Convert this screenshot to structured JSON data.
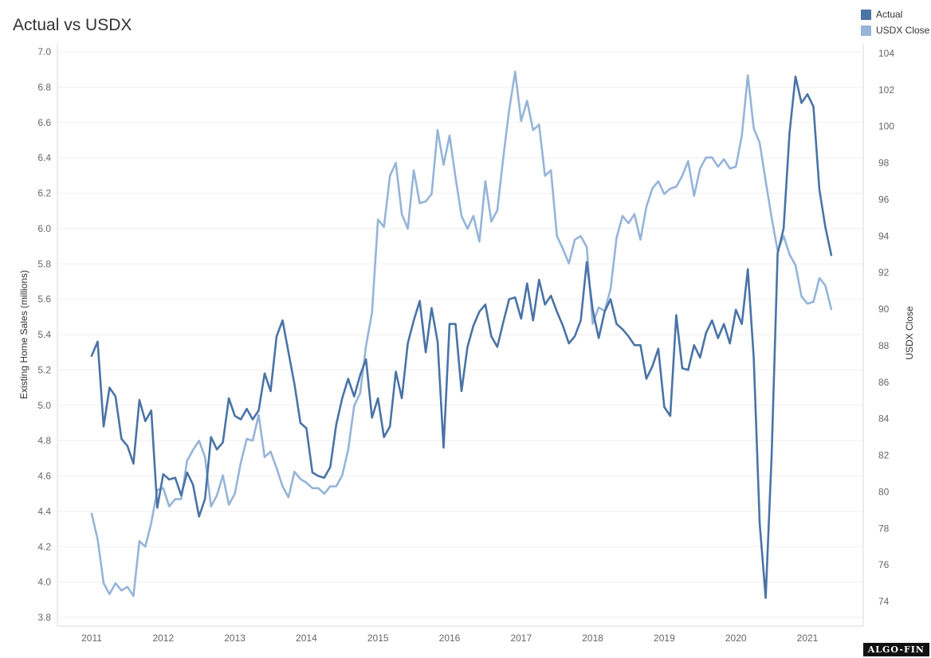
{
  "chart_data": {
    "type": "line",
    "title": "Actual vs USDX",
    "ylabel": "Existing Home Sales (millions)",
    "y2label": "USDX Close",
    "ylim": [
      3.8,
      7.0
    ],
    "y2lim": [
      73,
      104
    ],
    "xlim": [
      2010.5,
      2022.0
    ],
    "x_ticks": [
      "2011",
      "2012",
      "2013",
      "2014",
      "2015",
      "2016",
      "2017",
      "2018",
      "2019",
      "2020",
      "2021"
    ],
    "y_ticks": [
      "3.8",
      "4.0",
      "4.2",
      "4.4",
      "4.6",
      "4.8",
      "5.0",
      "5.2",
      "5.4",
      "5.6",
      "5.8",
      "6.0",
      "6.2",
      "6.4",
      "6.6",
      "6.8",
      "7.0"
    ],
    "y2_ticks": [
      "74",
      "76",
      "78",
      "80",
      "82",
      "84",
      "86",
      "88",
      "90",
      "92",
      "94",
      "96",
      "98",
      "100",
      "102",
      "104"
    ],
    "grid": true,
    "legend_position": "top-right",
    "x_start_year": 2011,
    "series": [
      {
        "name": "Actual",
        "color": "#4a73a6",
        "axis": "left",
        "values": [
          5.28,
          5.36,
          4.88,
          5.1,
          5.05,
          4.81,
          4.77,
          4.67,
          5.03,
          4.91,
          4.97,
          4.42,
          4.61,
          4.58,
          4.59,
          4.49,
          4.62,
          4.55,
          4.37,
          4.47,
          4.82,
          4.75,
          4.79,
          5.04,
          4.94,
          4.92,
          4.98,
          4.92,
          4.97,
          5.18,
          5.08,
          5.39,
          5.48,
          5.3,
          5.12,
          4.9,
          4.87,
          4.62,
          4.6,
          4.59,
          4.65,
          4.89,
          5.04,
          5.15,
          5.05,
          5.17,
          5.26,
          4.93,
          5.04,
          4.82,
          4.88,
          5.19,
          5.04,
          5.35,
          5.48,
          5.59,
          5.3,
          5.55,
          5.36,
          4.76,
          5.46,
          5.46,
          5.08,
          5.33,
          5.45,
          5.53,
          5.57,
          5.39,
          5.33,
          5.47,
          5.6,
          5.61,
          5.49,
          5.69,
          5.48,
          5.71,
          5.57,
          5.62,
          5.53,
          5.45,
          5.35,
          5.39,
          5.48,
          5.81,
          5.54,
          5.38,
          5.53,
          5.6,
          5.46,
          5.43,
          5.39,
          5.34,
          5.34,
          5.15,
          5.22,
          5.32,
          4.99,
          4.94,
          5.51,
          5.21,
          5.2,
          5.34,
          5.27,
          5.41,
          5.48,
          5.38,
          5.46,
          5.35,
          5.54,
          5.46,
          5.77,
          5.27,
          4.33,
          3.91,
          4.72,
          5.86,
          6.0,
          6.54,
          6.86,
          6.71,
          6.76,
          6.69,
          6.22,
          6.01,
          5.85
        ]
      },
      {
        "name": "USDX Close",
        "color": "#95b4d8",
        "axis": "right",
        "values": [
          78.8,
          77.4,
          75.0,
          74.4,
          75.0,
          74.6,
          74.8,
          74.3,
          77.3,
          77.0,
          78.3,
          80.1,
          80.2,
          79.2,
          79.6,
          79.6,
          81.7,
          82.3,
          82.8,
          81.9,
          79.2,
          79.8,
          80.9,
          79.3,
          79.9,
          81.6,
          82.9,
          82.8,
          84.2,
          81.9,
          82.2,
          81.3,
          80.3,
          79.7,
          81.1,
          80.7,
          80.5,
          80.2,
          80.2,
          79.9,
          80.3,
          80.3,
          80.9,
          82.3,
          84.7,
          85.4,
          88.0,
          89.8,
          94.9,
          94.5,
          97.3,
          98.0,
          95.2,
          94.4,
          97.6,
          95.8,
          95.9,
          96.3,
          99.8,
          97.9,
          99.5,
          97.2,
          95.1,
          94.4,
          95.1,
          93.7,
          97.0,
          94.8,
          95.4,
          98.3,
          100.9,
          103.0,
          100.3,
          101.4,
          99.8,
          100.1,
          97.3,
          97.6,
          94.0,
          93.3,
          92.5,
          93.8,
          94.0,
          93.4,
          89.2,
          90.1,
          89.9,
          91.1,
          93.9,
          95.1,
          94.7,
          95.2,
          93.8,
          95.6,
          96.6,
          97.0,
          96.3,
          96.6,
          96.7,
          97.3,
          98.1,
          96.2,
          97.7,
          98.3,
          98.3,
          97.8,
          98.2,
          97.7,
          97.8,
          99.5,
          102.8,
          99.9,
          99.1,
          97.0,
          95.0,
          93.2,
          94.0,
          93.0,
          92.4,
          90.7,
          90.3,
          90.4,
          91.7,
          91.3,
          90.0
        ]
      }
    ]
  },
  "brand": {
    "logo_text": "ALGO-FIN"
  }
}
